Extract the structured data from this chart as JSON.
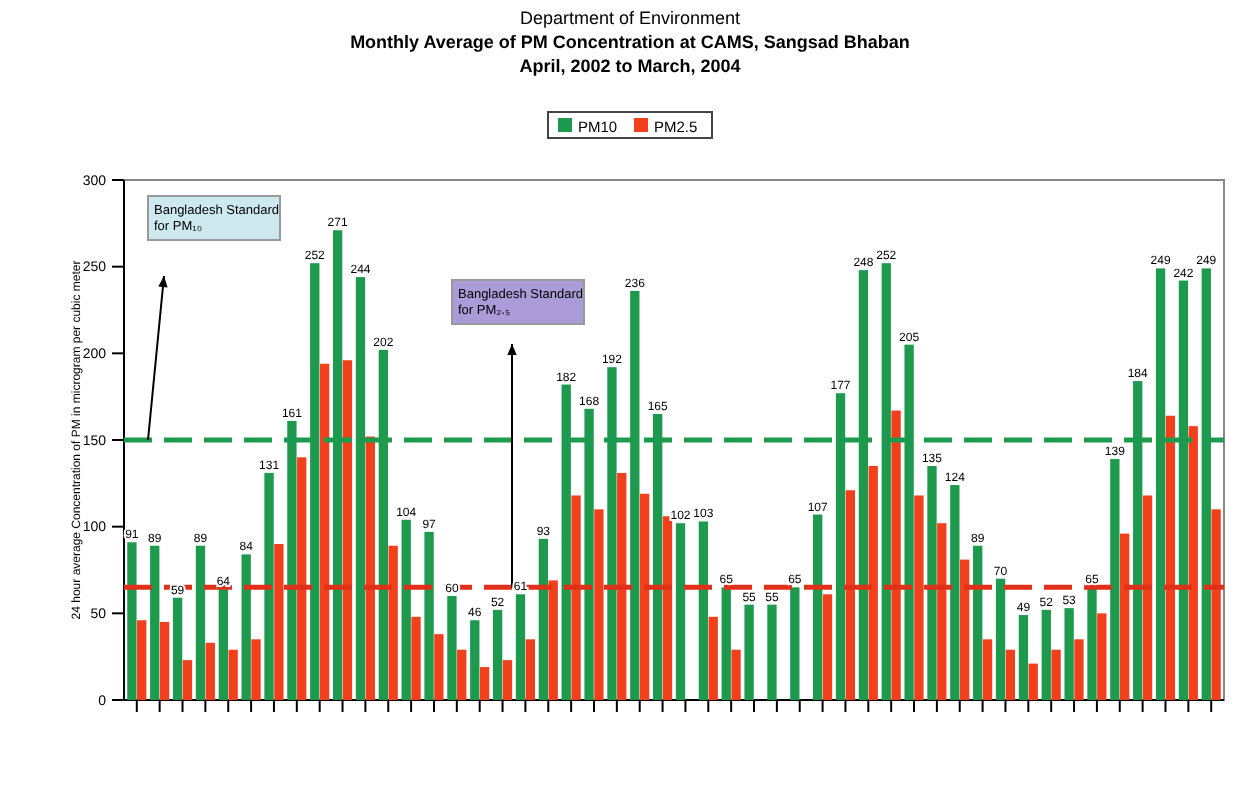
{
  "chart_data": {
    "type": "bar",
    "title": "Department of Environment",
    "subtitle": "Monthly Average of PM Concentration at CAMS, Sangsad Bhaban\nApril, 2002 to March, 2004",
    "ylabel": "24 hour average Concentration of PM in microgram per cubic meter",
    "categories": [
      null,
      null,
      null,
      null,
      null,
      null,
      null,
      null,
      null,
      null,
      null,
      null,
      null,
      null,
      null,
      null,
      null,
      null,
      null,
      null,
      null,
      null,
      null,
      null,
      null,
      null,
      null,
      null,
      null,
      null,
      null,
      null,
      null,
      null,
      null,
      null,
      null,
      null,
      null,
      null,
      null,
      null,
      null,
      null,
      null,
      null,
      null,
      null
    ],
    "series": [
      {
        "name": "PM10",
        "color": "#1e9a4e",
        "values": [
          91,
          89,
          59,
          89,
          64,
          84,
          131,
          161,
          252,
          271,
          244,
          202,
          104,
          97,
          60,
          46,
          52,
          61,
          93,
          182,
          168,
          192,
          236,
          165,
          102,
          103,
          65,
          55,
          55,
          65,
          107,
          177,
          248,
          252,
          205,
          135,
          124,
          89,
          70,
          49,
          52,
          53,
          65,
          139,
          184,
          249,
          242,
          249
        ],
        "value_labels": [
          "91",
          "89",
          "59",
          "89",
          "64",
          "84",
          "131",
          "161",
          "252",
          "271",
          "244",
          "202",
          "104",
          "97",
          "60",
          "46",
          "52",
          "61",
          "93",
          "182",
          "168",
          "192",
          "236",
          "165",
          "102",
          "103",
          "65",
          "55",
          "55",
          "65",
          "107",
          "177",
          "248",
          "252",
          "205",
          "135",
          "124",
          "89",
          "70",
          "49",
          "52",
          "53",
          "65",
          "139",
          "184",
          "249",
          "242",
          "249"
        ]
      },
      {
        "name": "PM2.5",
        "color": "#f2401c",
        "values": [
          46,
          45,
          23,
          33,
          29,
          35,
          90,
          140,
          194,
          196,
          152,
          89,
          48,
          38,
          29,
          19,
          23,
          35,
          69,
          118,
          110,
          131,
          119,
          106,
          null,
          48,
          29,
          null,
          null,
          null,
          61,
          121,
          135,
          167,
          118,
          102,
          81,
          35,
          29,
          21,
          29,
          35,
          50,
          96,
          118,
          164,
          158,
          110
        ]
      }
    ],
    "ylim": [
      0,
      300
    ],
    "yticks": [
      0,
      50,
      100,
      150,
      200,
      250,
      300
    ],
    "legend": "top",
    "annotations": [
      "Bangladesh Standard for PM₁₀",
      "Bangladesh Standard for PM₂.₅"
    ],
    "ref_lines": [
      {
        "axis": "y",
        "value": 150,
        "color": "#1e9a4e",
        "line_style": "dashed"
      },
      {
        "axis": "y",
        "value": 65,
        "color": "#e0301a",
        "line_style": "dashed"
      }
    ]
  }
}
